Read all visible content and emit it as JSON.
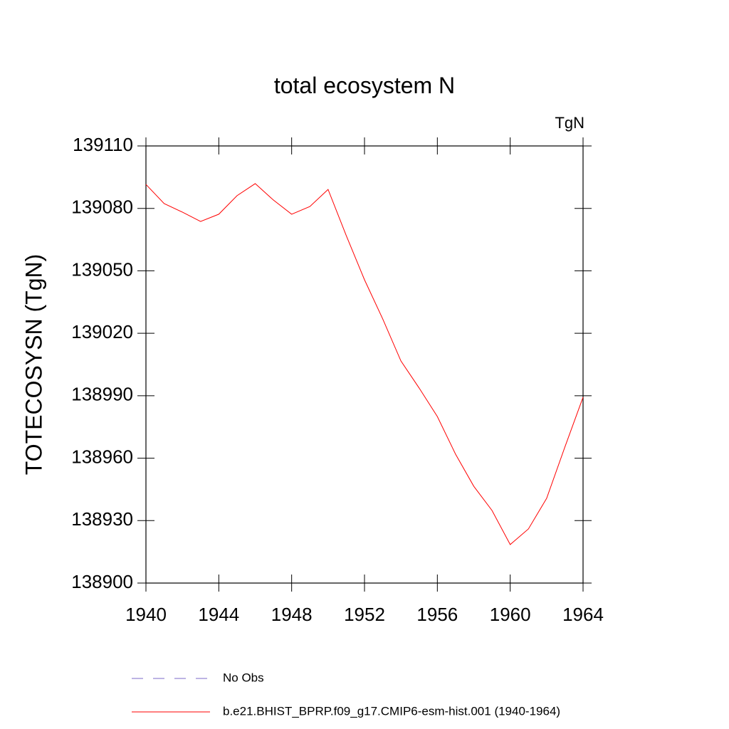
{
  "chart_data": {
    "type": "line",
    "title": "total ecosystem N",
    "units_label": "TgN",
    "y_label": "TOTECOSYSN  (TgN)",
    "x": [
      1940,
      1941,
      1942,
      1943,
      1944,
      1945,
      1946,
      1947,
      1948,
      1949,
      1950,
      1951,
      1952,
      1953,
      1954,
      1955,
      1956,
      1957,
      1958,
      1959,
      1960,
      1961,
      1962,
      1963,
      1964
    ],
    "series": [
      {
        "name": "b.e21.BHIST_BPRP.f09_g17.CMIP6-esm-hist.001 (1940-1964)",
        "color": "#ff0000",
        "values": [
          139091.5,
          139082.3,
          139078.2,
          139073.7,
          139077.2,
          139086.1,
          139091.9,
          139084,
          139077.2,
          139080.9,
          139089.1,
          139066.9,
          139045.7,
          139026.9,
          139006.7,
          138993.7,
          138980,
          138961.9,
          138946.5,
          138934.9,
          138918.5,
          138926,
          138940.7,
          138965.3,
          138989.3
        ]
      }
    ],
    "reference_series": {
      "name": "No Obs",
      "color": "#7b68c8"
    },
    "xlim": [
      1940,
      1964
    ],
    "xticks": [
      1940,
      1944,
      1948,
      1952,
      1956,
      1960,
      1964
    ],
    "ylim": [
      138900,
      139110
    ],
    "yticks": [
      138900,
      138930,
      138960,
      138990,
      139020,
      139050,
      139080,
      139110
    ]
  }
}
